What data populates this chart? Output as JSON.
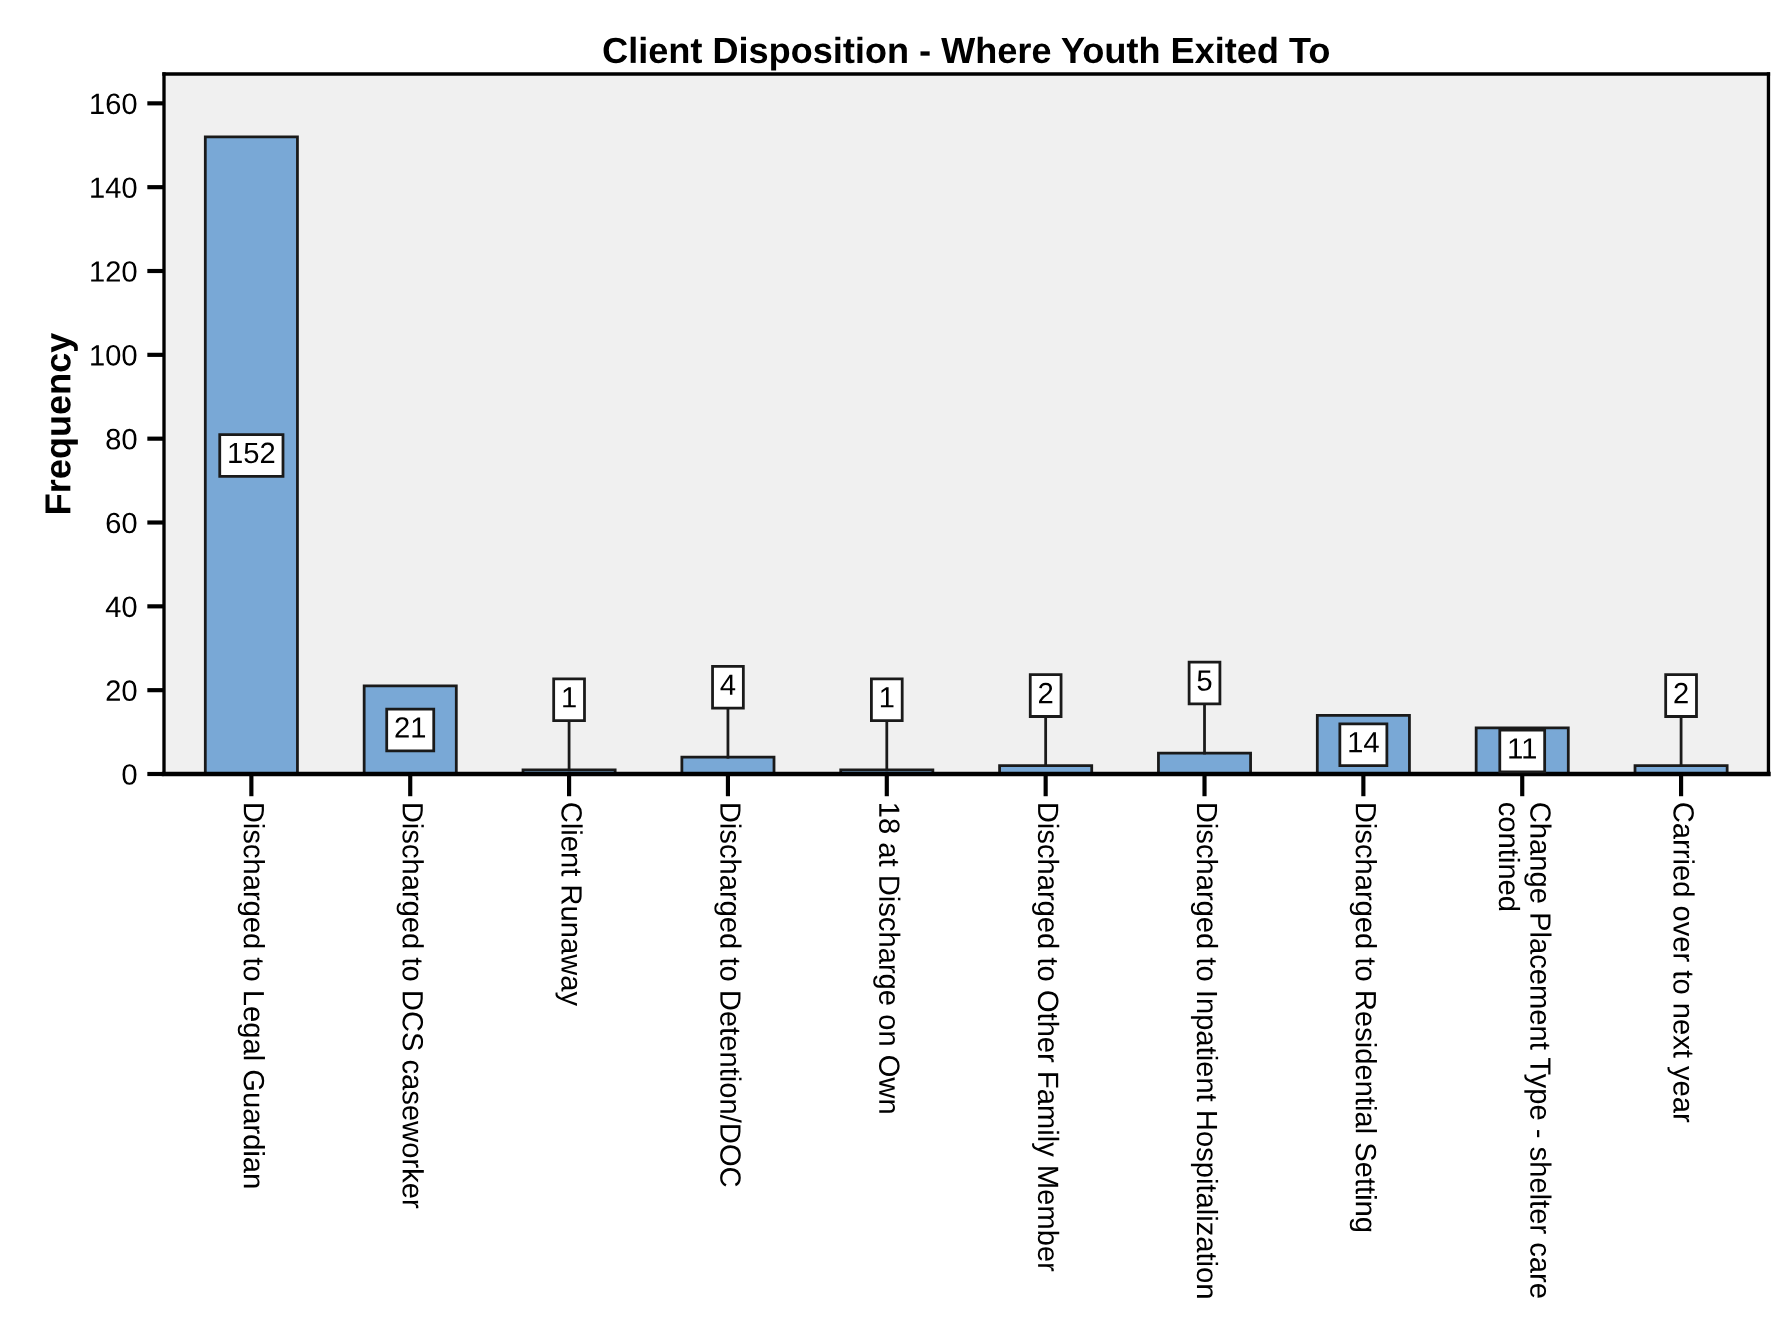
{
  "chart_data": {
    "type": "bar",
    "title": "Client Disposition - Where Youth Exited To",
    "ylabel": "Frequency",
    "categories": [
      "Discharged to Legal Guardian",
      "Discharged to DCS caseworker",
      "Client Runaway",
      "Discharged to Detention/DOC",
      "18 at Discharge on Own",
      "Discharged to Other Family Member",
      "Discharged to Inpatient Hospitalization",
      "Discharged to Residential Setting",
      "Change Placement Type - shelter care\ncontined",
      "Carried over to next year"
    ],
    "values": [
      152,
      21,
      1,
      4,
      1,
      2,
      5,
      14,
      11,
      2
    ],
    "color": "#79a8d6",
    "ylim": [
      0,
      167
    ],
    "yticks": [
      0,
      20,
      40,
      60,
      80,
      100,
      120,
      140,
      160
    ],
    "grid": false,
    "data_labels": true
  }
}
